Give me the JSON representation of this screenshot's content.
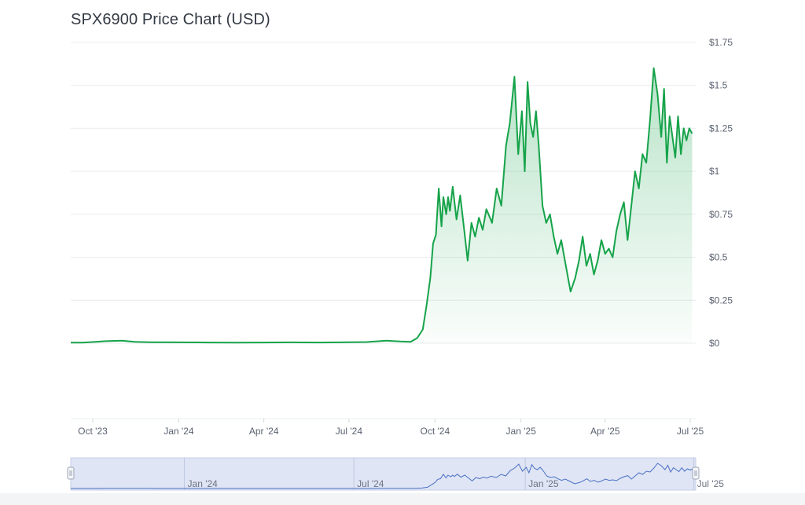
{
  "chart_title": "SPX6900 Price Chart (USD)",
  "colors": {
    "line": "#16a34a",
    "area_top": "#16a34a",
    "grid": "#e9ecef",
    "navigator_fill": "#dfe5f5",
    "navigator_line": "#4a6fc4"
  },
  "chart_data": {
    "type": "area",
    "title": "SPX6900 Price Chart (USD)",
    "x_tick_labels": [
      "Oct '23",
      "Jan '24",
      "Apr '24",
      "Jul '24",
      "Oct '24",
      "Jan '25",
      "Apr '25",
      "Jul '25"
    ],
    "y_tick_labels": [
      "$0",
      "$0.25",
      "$0.5",
      "$0.75",
      "$1",
      "$1.25",
      "$1.5",
      "$1.75"
    ],
    "ylim": [
      0,
      1.75
    ],
    "grid": true,
    "navigator_tick_labels": [
      "Jan '24",
      "Jul '24",
      "Jan '25",
      "Jul '25"
    ],
    "series": [
      {
        "x": [
          "2023-09-01",
          "2023-09-20",
          "2023-10-15",
          "2023-11-01",
          "2023-11-15",
          "2023-12-01",
          "2024-01-01",
          "2024-02-01",
          "2024-03-01",
          "2024-04-01",
          "2024-05-01",
          "2024-06-01",
          "2024-07-01",
          "2024-07-20",
          "2024-08-10",
          "2024-08-25",
          "2024-09-05",
          "2024-09-12",
          "2024-09-18",
          "2024-09-22",
          "2024-09-26",
          "2024-09-29",
          "2024-10-02",
          "2024-10-05",
          "2024-10-08",
          "2024-10-10",
          "2024-10-13",
          "2024-10-15",
          "2024-10-17",
          "2024-10-20",
          "2024-10-24",
          "2024-10-28",
          "2024-11-01",
          "2024-11-05",
          "2024-11-09",
          "2024-11-13",
          "2024-11-17",
          "2024-11-21",
          "2024-11-25",
          "2024-12-01",
          "2024-12-06",
          "2024-12-11",
          "2024-12-16",
          "2024-12-20",
          "2024-12-25",
          "2024-12-29",
          "2025-01-02",
          "2025-01-05",
          "2025-01-08",
          "2025-01-11",
          "2025-01-14",
          "2025-01-17",
          "2025-01-20",
          "2025-01-24",
          "2025-01-28",
          "2025-02-01",
          "2025-02-05",
          "2025-02-09",
          "2025-02-13",
          "2025-02-18",
          "2025-02-23",
          "2025-02-28",
          "2025-03-04",
          "2025-03-08",
          "2025-03-12",
          "2025-03-16",
          "2025-03-20",
          "2025-03-24",
          "2025-03-28",
          "2025-04-01",
          "2025-04-05",
          "2025-04-09",
          "2025-04-13",
          "2025-04-17",
          "2025-04-21",
          "2025-04-25",
          "2025-04-29",
          "2025-05-03",
          "2025-05-07",
          "2025-05-11",
          "2025-05-15",
          "2025-05-19",
          "2025-05-23",
          "2025-05-27",
          "2025-05-31",
          "2025-06-03",
          "2025-06-06",
          "2025-06-09",
          "2025-06-12",
          "2025-06-15",
          "2025-06-18",
          "2025-06-21",
          "2025-06-24",
          "2025-06-27",
          "2025-06-30",
          "2025-07-03"
        ],
        "y": [
          0.003,
          0.003,
          0.012,
          0.015,
          0.008,
          0.006,
          0.005,
          0.004,
          0.003,
          0.004,
          0.005,
          0.004,
          0.006,
          0.007,
          0.015,
          0.01,
          0.008,
          0.03,
          0.08,
          0.22,
          0.38,
          0.58,
          0.63,
          0.9,
          0.68,
          0.85,
          0.75,
          0.85,
          0.77,
          0.91,
          0.72,
          0.86,
          0.67,
          0.48,
          0.7,
          0.62,
          0.73,
          0.66,
          0.78,
          0.7,
          0.9,
          0.8,
          1.15,
          1.28,
          1.55,
          1.1,
          1.35,
          1.0,
          1.52,
          1.28,
          1.2,
          1.35,
          1.15,
          0.8,
          0.7,
          0.75,
          0.62,
          0.52,
          0.6,
          0.45,
          0.3,
          0.38,
          0.48,
          0.62,
          0.45,
          0.52,
          0.4,
          0.48,
          0.6,
          0.52,
          0.55,
          0.5,
          0.65,
          0.75,
          0.82,
          0.6,
          0.8,
          1.0,
          0.9,
          1.1,
          1.05,
          1.3,
          1.6,
          1.45,
          1.2,
          1.48,
          1.05,
          1.32,
          1.2,
          1.08,
          1.32,
          1.1,
          1.25,
          1.18,
          1.25,
          1.22
        ]
      }
    ]
  }
}
